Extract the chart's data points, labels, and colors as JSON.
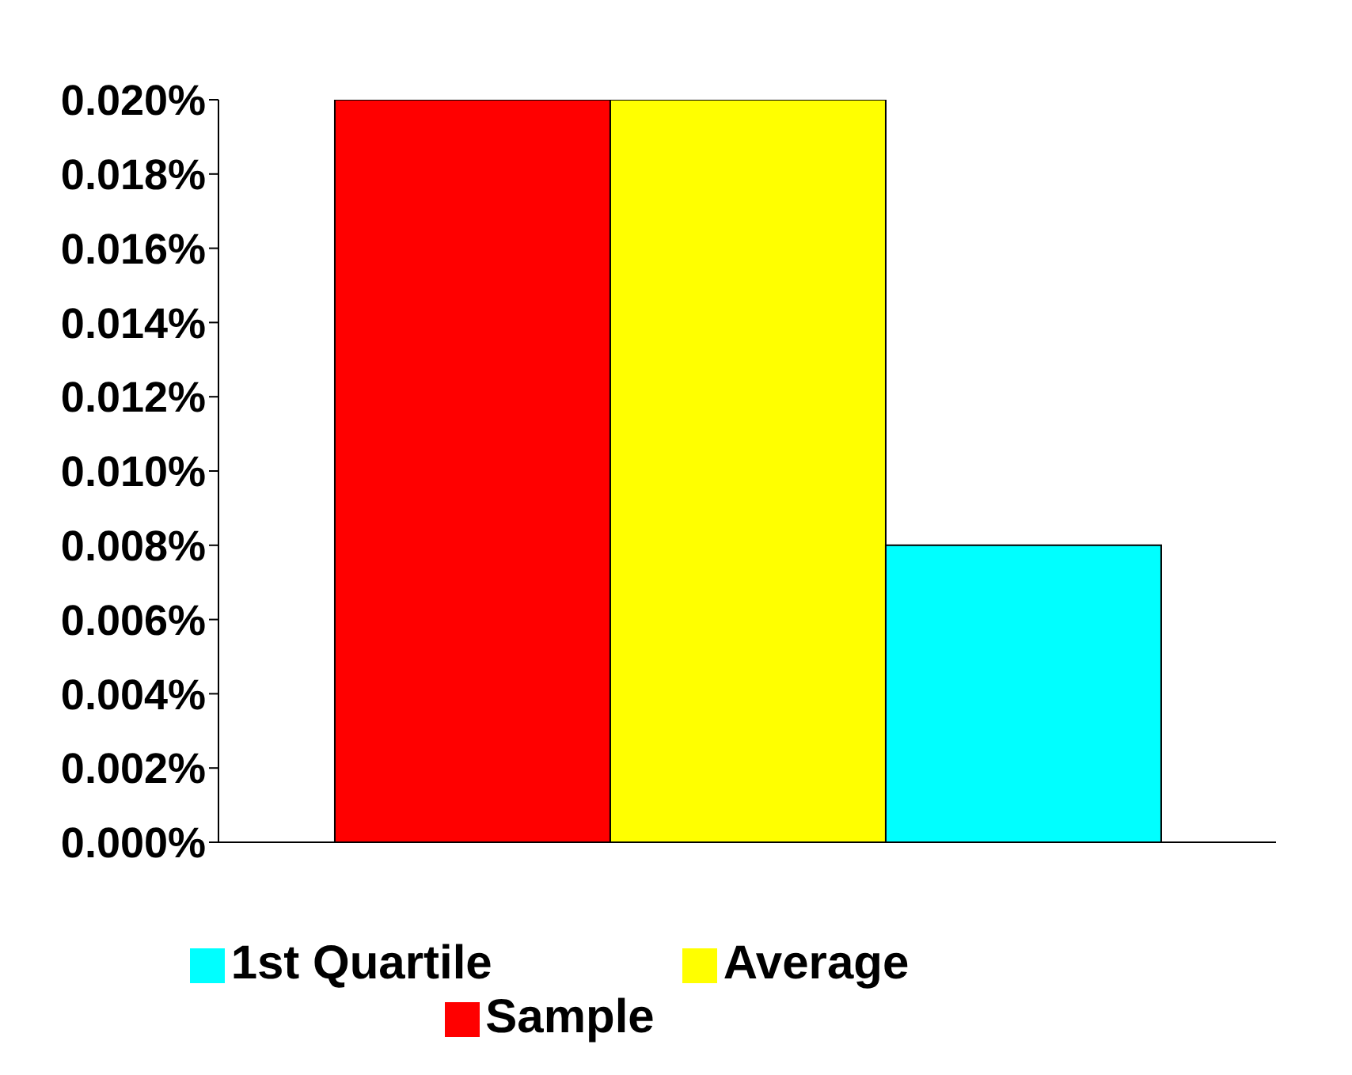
{
  "chart_data": {
    "type": "bar",
    "categories": [
      null
    ],
    "series": [
      {
        "name": "Sample",
        "color": "#ff0000",
        "values": [
          0.02
        ]
      },
      {
        "name": "Average",
        "color": "#ffff00",
        "values": [
          0.02
        ]
      },
      {
        "name": "1st Quartile",
        "color": "#00ffff",
        "values": [
          0.008
        ]
      }
    ],
    "ylim": [
      0,
      0.02
    ],
    "yticks": [
      {
        "value": 0,
        "label": "0.000%"
      },
      {
        "value": 0.002,
        "label": "0.002%"
      },
      {
        "value": 0.004,
        "label": "0.004%"
      },
      {
        "value": 0.006,
        "label": "0.006%"
      },
      {
        "value": 0.008,
        "label": "0.008%"
      },
      {
        "value": 0.01,
        "label": "0.010%"
      },
      {
        "value": 0.012,
        "label": "0.012%"
      },
      {
        "value": 0.014,
        "label": "0.014%"
      },
      {
        "value": 0.016,
        "label": "0.016%"
      },
      {
        "value": 0.018,
        "label": "0.018%"
      },
      {
        "value": 0.02,
        "label": "0.020%"
      }
    ],
    "grid": false,
    "legend": "bottom"
  }
}
